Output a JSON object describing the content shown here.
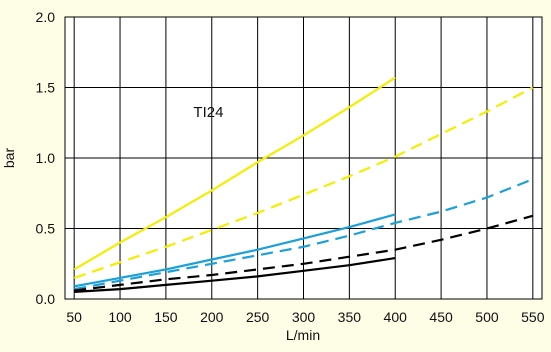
{
  "chart_data": {
    "type": "line",
    "title": "",
    "xlabel": "L/min",
    "ylabel": "bar",
    "xlim": [
      40,
      560
    ],
    "ylim": [
      0,
      2.0
    ],
    "x_ticks": [
      50,
      100,
      150,
      200,
      250,
      300,
      350,
      400,
      450,
      500,
      550
    ],
    "y_ticks": [
      0.0,
      0.5,
      1.0,
      1.5,
      2.0
    ],
    "x_tick_labels": [
      "50",
      "100",
      "150",
      "200",
      "250",
      "300",
      "350",
      "400",
      "450",
      "500",
      "550"
    ],
    "y_tick_labels": [
      "0.0",
      "0.5",
      "1.0",
      "1.5",
      "2.0"
    ],
    "grid": true,
    "annotations": [
      {
        "text": "TI24",
        "x": 180,
        "y": 1.29
      }
    ],
    "series": [
      {
        "color": "#f4ee00",
        "style": "solid",
        "x": [
          50,
          100,
          150,
          200,
          250,
          300,
          350,
          400
        ],
        "y": [
          0.21,
          0.4,
          0.58,
          0.77,
          0.97,
          1.16,
          1.36,
          1.57
        ]
      },
      {
        "color": "#f4ee00",
        "style": "dashed",
        "x": [
          50,
          100,
          150,
          200,
          250,
          300,
          350,
          400,
          450,
          500,
          550
        ],
        "y": [
          0.15,
          0.26,
          0.37,
          0.49,
          0.61,
          0.74,
          0.87,
          1.01,
          1.17,
          1.33,
          1.5
        ]
      },
      {
        "color": "#1ba0db",
        "style": "solid",
        "x": [
          50,
          100,
          150,
          200,
          250,
          300,
          350,
          400
        ],
        "y": [
          0.09,
          0.15,
          0.21,
          0.28,
          0.35,
          0.43,
          0.51,
          0.6
        ]
      },
      {
        "color": "#1ba0db",
        "style": "dashed",
        "x": [
          50,
          100,
          150,
          200,
          250,
          300,
          350,
          400,
          450,
          500,
          550
        ],
        "y": [
          0.07,
          0.13,
          0.19,
          0.25,
          0.31,
          0.37,
          0.45,
          0.54,
          0.62,
          0.72,
          0.85
        ]
      },
      {
        "color": "#000000",
        "style": "dashed",
        "x": [
          50,
          100,
          150,
          200,
          250,
          300,
          350,
          400,
          450,
          500,
          550
        ],
        "y": [
          0.06,
          0.1,
          0.14,
          0.17,
          0.21,
          0.25,
          0.3,
          0.35,
          0.42,
          0.5,
          0.59
        ]
      },
      {
        "color": "#000000",
        "style": "solid",
        "x": [
          50,
          100,
          150,
          200,
          250,
          300,
          350,
          400
        ],
        "y": [
          0.05,
          0.07,
          0.1,
          0.13,
          0.16,
          0.2,
          0.24,
          0.29
        ]
      }
    ]
  }
}
